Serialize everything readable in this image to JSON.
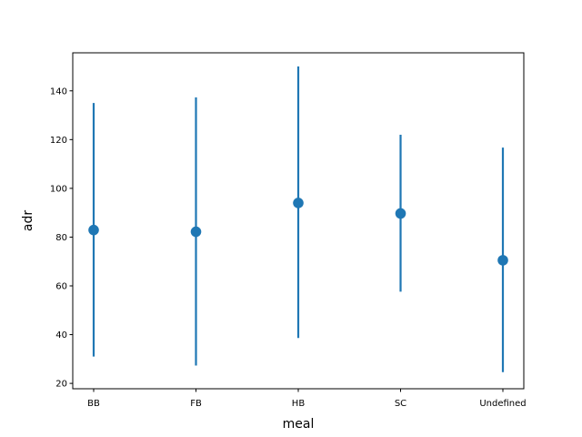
{
  "chart_data": {
    "type": "scatter",
    "title": "",
    "xlabel": "meal",
    "ylabel": "adr",
    "categories": [
      "BB",
      "FB",
      "HB",
      "SC",
      "Undefined"
    ],
    "points": [
      {
        "category": "BB",
        "y": 82.9,
        "lower": 31.0,
        "upper": 135.0
      },
      {
        "category": "FB",
        "y": 82.2,
        "lower": 27.3,
        "upper": 137.3
      },
      {
        "category": "HB",
        "y": 94.0,
        "lower": 38.6,
        "upper": 150.0
      },
      {
        "category": "SC",
        "y": 89.7,
        "lower": 57.6,
        "upper": 122.0
      },
      {
        "category": "Undefined",
        "y": 70.5,
        "lower": 24.6,
        "upper": 116.7
      }
    ],
    "ylim": [
      17.8,
      155.6
    ],
    "yticks": [
      20,
      40,
      60,
      80,
      100,
      120,
      140
    ],
    "grid": false,
    "color": "#1f77b4"
  }
}
